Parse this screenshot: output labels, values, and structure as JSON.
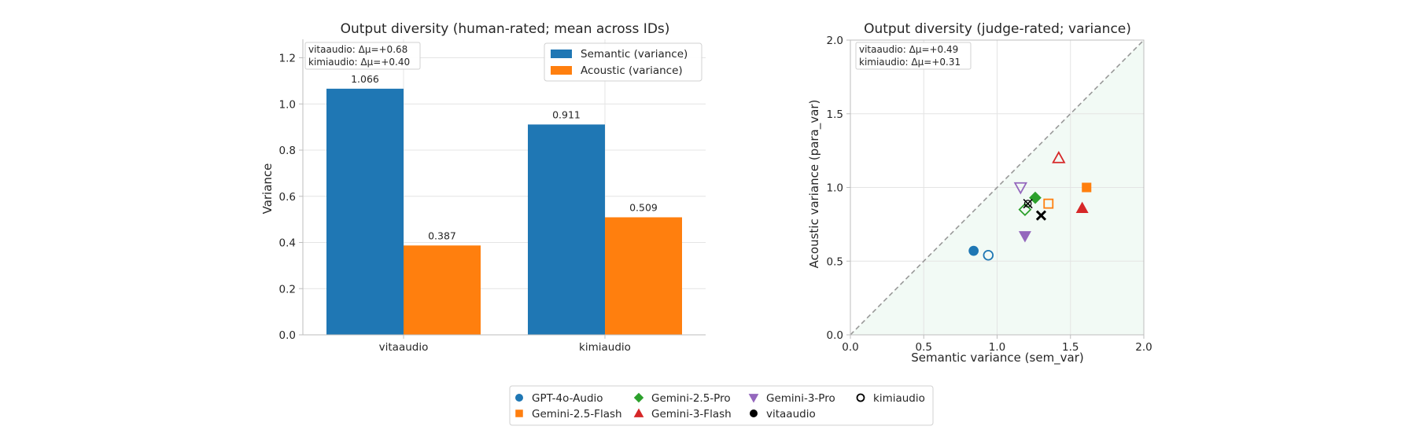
{
  "chart_data": [
    {
      "type": "bar",
      "title": "Output diversity (human-rated; mean across IDs)",
      "xlabel": "",
      "ylabel": "Variance",
      "categories": [
        "vitaaudio",
        "kimiaudio"
      ],
      "series": [
        {
          "name": "Semantic (variance)",
          "color": "#1f77b4",
          "values": [
            1.066,
            0.911
          ]
        },
        {
          "name": "Acoustic (variance)",
          "color": "#ff7f0e",
          "values": [
            0.387,
            0.509
          ]
        }
      ],
      "data_labels": [
        [
          "1.066",
          "0.911"
        ],
        [
          "0.387",
          "0.509"
        ]
      ],
      "ylim": [
        0,
        1.28
      ],
      "yticks": [
        "0.0",
        "0.2",
        "0.4",
        "0.6",
        "0.8",
        "1.0",
        "1.2"
      ],
      "annotations": [
        "vitaaudio: Δμ=+0.68",
        "kimiaudio: Δμ=+0.40"
      ],
      "legend_position": "upper right",
      "grid": true
    },
    {
      "type": "scatter",
      "title": "Output diversity (judge-rated; variance)",
      "xlabel": "Semantic variance (sem_var)",
      "ylabel": "Acoustic variance (para_var)",
      "xlim": [
        0,
        2.0
      ],
      "ylim": [
        0,
        2.0
      ],
      "xticks": [
        "0.0",
        "0.5",
        "1.0",
        "1.5",
        "2.0"
      ],
      "yticks": [
        "0.0",
        "0.5",
        "1.0",
        "1.5",
        "2.0"
      ],
      "annotations": [
        "vitaaudio: Δμ=+0.49",
        "kimiaudio: Δμ=+0.31"
      ],
      "reference_line": "y = x (dashed)",
      "grid": true,
      "points": [
        {
          "model": "GPT-4o-Audio",
          "system": "vitaaudio",
          "x": 0.84,
          "y": 0.57,
          "marker": "circle",
          "color": "#1f77b4",
          "filled": true
        },
        {
          "model": "GPT-4o-Audio",
          "system": "kimiaudio",
          "x": 0.94,
          "y": 0.54,
          "marker": "circle",
          "color": "#1f77b4",
          "filled": false
        },
        {
          "model": "Gemini-2.5-Flash",
          "system": "vitaaudio",
          "x": 1.61,
          "y": 1.0,
          "marker": "square",
          "color": "#ff7f0e",
          "filled": true
        },
        {
          "model": "Gemini-2.5-Flash",
          "system": "kimiaudio",
          "x": 1.35,
          "y": 0.89,
          "marker": "square",
          "color": "#ff7f0e",
          "filled": false
        },
        {
          "model": "Gemini-2.5-Pro",
          "system": "vitaaudio",
          "x": 1.26,
          "y": 0.93,
          "marker": "diamond",
          "color": "#2ca02c",
          "filled": true
        },
        {
          "model": "Gemini-2.5-Pro",
          "system": "kimiaudio",
          "x": 1.19,
          "y": 0.85,
          "marker": "diamond",
          "color": "#2ca02c",
          "filled": false
        },
        {
          "model": "Gemini-3-Flash",
          "system": "vitaaudio",
          "x": 1.58,
          "y": 0.86,
          "marker": "triangle-up",
          "color": "#d62728",
          "filled": true
        },
        {
          "model": "Gemini-3-Flash",
          "system": "kimiaudio",
          "x": 1.42,
          "y": 1.2,
          "marker": "triangle-up",
          "color": "#d62728",
          "filled": false
        },
        {
          "model": "Gemini-3-Pro",
          "system": "vitaaudio",
          "x": 1.19,
          "y": 0.67,
          "marker": "triangle-down",
          "color": "#9467bd",
          "filled": true
        },
        {
          "model": "Gemini-3-Pro",
          "system": "kimiaudio",
          "x": 1.16,
          "y": 1.0,
          "marker": "triangle-down",
          "color": "#9467bd",
          "filled": false
        },
        {
          "model": "vitaaudio mean",
          "system": "vitaaudio",
          "x": 1.3,
          "y": 0.81,
          "marker": "x",
          "color": "#000000",
          "filled": true
        },
        {
          "model": "kimiaudio mean",
          "system": "kimiaudio",
          "x": 1.21,
          "y": 0.89,
          "marker": "x",
          "color": "#000000",
          "filled": false
        }
      ]
    }
  ],
  "legend": [
    {
      "label": "GPT-4o-Audio",
      "marker": "circle",
      "color": "#1f77b4",
      "filled": true
    },
    {
      "label": "Gemini-2.5-Flash",
      "marker": "square",
      "color": "#ff7f0e",
      "filled": true
    },
    {
      "label": "Gemini-2.5-Pro",
      "marker": "diamond",
      "color": "#2ca02c",
      "filled": true
    },
    {
      "label": "Gemini-3-Flash",
      "marker": "triangle-up",
      "color": "#d62728",
      "filled": true
    },
    {
      "label": "Gemini-3-Pro",
      "marker": "triangle-down",
      "color": "#9467bd",
      "filled": true
    },
    {
      "label": "vitaaudio",
      "marker": "circle",
      "color": "#000000",
      "filled": true
    },
    {
      "label": "kimiaudio",
      "marker": "circle",
      "color": "#000000",
      "filled": false
    }
  ]
}
